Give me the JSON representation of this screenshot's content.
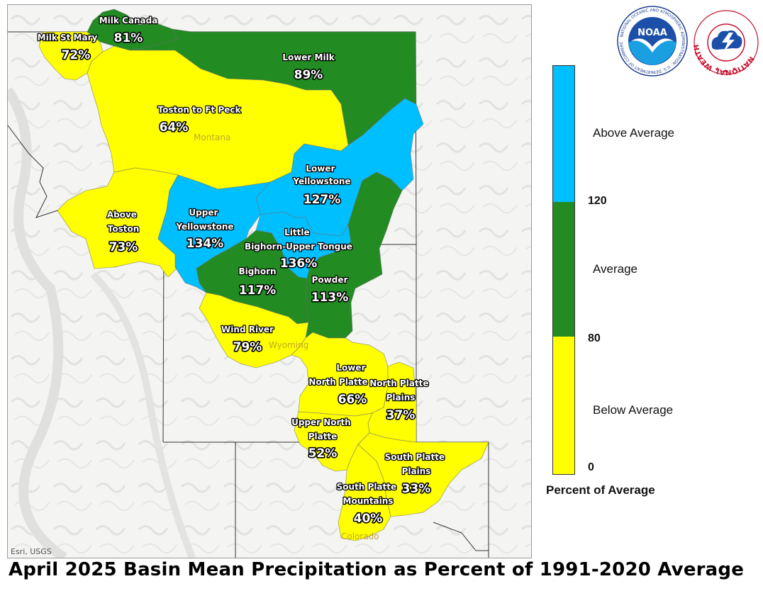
{
  "title": "April 2025 Basin Mean Precipitation as Percent of 1991-2020 Average",
  "credit": "Esri, USGS",
  "states": [
    "Montana",
    "Wyoming",
    "Colorado"
  ],
  "legend": {
    "title": "Percent of Average",
    "categories": [
      {
        "label": "Above Average",
        "color": "#00BFFF"
      },
      {
        "label": "Average",
        "color": "#228B22"
      },
      {
        "label": "Below Average",
        "color": "#FFFF00"
      }
    ],
    "breaks": [
      "120",
      "80",
      "0"
    ]
  },
  "colors": {
    "above": "#00BFFF",
    "average": "#228B22",
    "below": "#FFFF00"
  },
  "basins": [
    {
      "name": "Milk Canada",
      "percent": "81%",
      "value": 81,
      "category": "average"
    },
    {
      "name": "Milk St Mary",
      "percent": "72%",
      "value": 72,
      "category": "below"
    },
    {
      "name": "Lower Milk",
      "percent": "89%",
      "value": 89,
      "category": "average"
    },
    {
      "name": "Toston to Ft Peck",
      "percent": "64%",
      "value": 64,
      "category": "below"
    },
    {
      "name": "Lower Yellowstone",
      "percent": "127%",
      "value": 127,
      "category": "above"
    },
    {
      "name": "Above Toston",
      "percent": "73%",
      "value": 73,
      "category": "below"
    },
    {
      "name": "Upper Yellowstone",
      "percent": "134%",
      "value": 134,
      "category": "above"
    },
    {
      "name": "Little Bighorn-Upper Tongue",
      "percent": "136%",
      "value": 136,
      "category": "above"
    },
    {
      "name": "Bighorn",
      "percent": "117%",
      "value": 117,
      "category": "average"
    },
    {
      "name": "Powder",
      "percent": "113%",
      "value": 113,
      "category": "average"
    },
    {
      "name": "Wind River",
      "percent": "79%",
      "value": 79,
      "category": "below"
    },
    {
      "name": "Lower North Platte",
      "percent": "66%",
      "value": 66,
      "category": "below"
    },
    {
      "name": "North Platte Plains",
      "percent": "37%",
      "value": 37,
      "category": "below"
    },
    {
      "name": "Upper North Platte",
      "percent": "52%",
      "value": 52,
      "category": "below"
    },
    {
      "name": "South Platte Plains",
      "percent": "33%",
      "value": 33,
      "category": "below"
    },
    {
      "name": "South Platte Mountains",
      "percent": "40%",
      "value": 40,
      "category": "below"
    }
  ],
  "logos": [
    {
      "name": "noaa-logo",
      "text": "NOAA",
      "ring_text": "NATIONAL OCEANIC AND ATMOSPHERIC ADMINISTRATION · U.S. DEPARTMENT OF COMMERCE"
    },
    {
      "name": "nws-logo",
      "ring_text": "NATIONAL WEATHER SERVICE"
    }
  ]
}
